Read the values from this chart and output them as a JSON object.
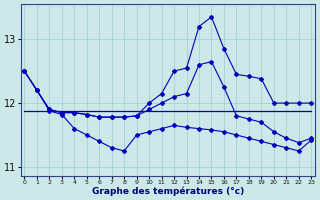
{
  "background_color": "#cce8e8",
  "grid_color": "#aad4d4",
  "line_color": "#0000bb",
  "hours": [
    0,
    1,
    2,
    3,
    4,
    5,
    6,
    7,
    8,
    9,
    10,
    11,
    12,
    13,
    14,
    15,
    16,
    17,
    18,
    19,
    20,
    21,
    22,
    23
  ],
  "series_peak": [
    12.5,
    12.2,
    11.9,
    11.85,
    11.85,
    11.82,
    11.78,
    11.78,
    11.78,
    11.8,
    12.0,
    12.15,
    12.5,
    12.55,
    13.2,
    13.35,
    12.85,
    12.45,
    12.42,
    12.38,
    12.0,
    12.0,
    12.0,
    12.0
  ],
  "series_flat": [
    11.88,
    11.88,
    11.88,
    11.88,
    11.88,
    11.88,
    11.88,
    11.88,
    11.88,
    11.88,
    11.88,
    11.88,
    11.88,
    11.88,
    11.88,
    11.88,
    11.88,
    11.88,
    11.88,
    11.88,
    11.88,
    11.88,
    11.88,
    11.88
  ],
  "series_med": [
    12.5,
    12.2,
    11.9,
    11.85,
    11.85,
    11.82,
    11.78,
    11.78,
    11.78,
    11.8,
    11.9,
    12.0,
    12.1,
    12.15,
    12.6,
    12.65,
    12.25,
    11.8,
    11.75,
    11.7,
    11.55,
    11.45,
    11.38,
    11.45
  ],
  "series_decline": [
    12.5,
    12.2,
    11.88,
    11.82,
    11.6,
    11.5,
    11.4,
    11.3,
    11.25,
    11.5,
    11.55,
    11.6,
    11.65,
    11.62,
    11.6,
    11.58,
    11.55,
    11.5,
    11.45,
    11.4,
    11.35,
    11.3,
    11.25,
    11.42
  ],
  "xlabel": "Graphe des températures (°c)",
  "ylim": [
    10.85,
    13.55
  ],
  "yticks": [
    11,
    12,
    13
  ],
  "xlim": [
    -0.3,
    23.3
  ]
}
